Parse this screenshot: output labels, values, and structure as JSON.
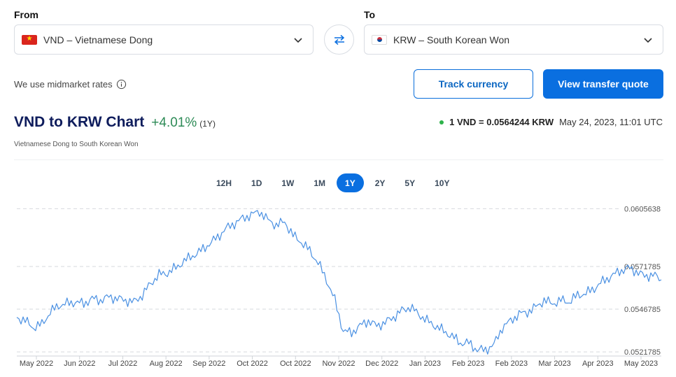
{
  "from": {
    "label": "From",
    "currency": "VND – Vietnamese Dong",
    "flag_icon": "flag-vietnam-icon"
  },
  "to": {
    "label": "To",
    "currency": "KRW – South Korean Won",
    "flag_icon": "flag-south-korea-icon"
  },
  "swap_icon": "swap-arrows-icon",
  "midmarket_text": "We use midmarket rates",
  "buttons": {
    "track": "Track currency",
    "quote": "View transfer quote"
  },
  "title": {
    "main": "VND to KRW Chart",
    "change": "+4.01%",
    "period": "(1Y)",
    "subtitle": "Vietnamese Dong to South Korean Won"
  },
  "rate": {
    "value": "1 VND = 0.0564244 KRW",
    "timestamp": "May 24, 2023, 11:01 UTC"
  },
  "periods": [
    "12H",
    "1D",
    "1W",
    "1M",
    "1Y",
    "2Y",
    "5Y",
    "10Y"
  ],
  "active_period": "1Y",
  "colors": {
    "accent": "#0a6fe0",
    "title": "#0e1c5c",
    "positive": "#2e8b57",
    "line": "#4a90e2",
    "live_dot": "#2db24a"
  },
  "chart_data": {
    "type": "line",
    "title": "",
    "xlabel": "",
    "ylabel": "",
    "ylim": [
      0.0521,
      0.0607
    ],
    "y_ticks": [
      "0.0605638",
      "0.0571785",
      "0.0546785",
      "0.0521785"
    ],
    "x_ticks": [
      "May 2022",
      "Jun 2022",
      "Jul 2022",
      "Aug 2022",
      "Sep 2022",
      "Oct 2022",
      "Oct 2022",
      "Nov 2022",
      "Dec 2022",
      "Jan 2023",
      "Feb 2023",
      "Feb 2023",
      "Mar 2023",
      "Apr 2023",
      "May 2023"
    ],
    "grid": "horizontal dashed",
    "series": [
      {
        "values": [
          0.0542,
          0.054,
          0.0536,
          0.0538,
          0.0545,
          0.0549,
          0.055,
          0.0551,
          0.055,
          0.0553,
          0.0552,
          0.0554,
          0.0553,
          0.0552,
          0.0551,
          0.0555,
          0.0562,
          0.0567,
          0.0568,
          0.0571,
          0.0575,
          0.0578,
          0.0581,
          0.0585,
          0.0589,
          0.0594,
          0.0597,
          0.06,
          0.0602,
          0.0604,
          0.0599,
          0.0596,
          0.0598,
          0.059,
          0.0586,
          0.0581,
          0.0574,
          0.0564,
          0.0552,
          0.0534,
          0.0533,
          0.0537,
          0.054,
          0.0537,
          0.0539,
          0.0542,
          0.0546,
          0.0548,
          0.0544,
          0.054,
          0.0537,
          0.0534,
          0.0531,
          0.0527,
          0.0527,
          0.0523,
          0.0523,
          0.0526,
          0.0536,
          0.054,
          0.0544,
          0.0545,
          0.0548,
          0.0552,
          0.055,
          0.0552,
          0.0551,
          0.0555,
          0.0556,
          0.0559,
          0.0563,
          0.0566,
          0.0569,
          0.0571,
          0.0569,
          0.0566,
          0.0567,
          0.0564
        ]
      }
    ]
  }
}
